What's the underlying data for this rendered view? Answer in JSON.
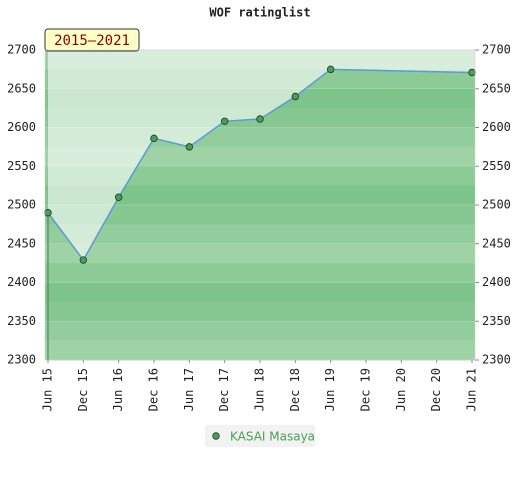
{
  "chart_data": {
    "type": "line",
    "title": "WOF ratinglist",
    "badge": "2015–2021",
    "categories": [
      "Jun 15",
      "Dec 15",
      "Jun 16",
      "Dec 16",
      "Jun 17",
      "Dec 17",
      "Jun 18",
      "Dec 18",
      "Jun 19",
      "Dec 19",
      "Jun 20",
      "Dec 20",
      "Jun 21"
    ],
    "series": [
      {
        "name": "KASAI Masaya",
        "color": "#5a9bd4",
        "marker_color": "#4a9e5a",
        "x": [
          "Jun 15",
          "Dec 15",
          "Jun 16",
          "Dec 16",
          "Jun 17",
          "Dec 17",
          "Jun 18",
          "Dec 18",
          "Jun 19",
          "Jun 21"
        ],
        "values": [
          2490,
          2429,
          2510,
          2586,
          2575,
          2608,
          2611,
          2640,
          2675,
          2671
        ]
      }
    ],
    "ylim": [
      2300,
      2700
    ],
    "yticks": [
      2300,
      2350,
      2400,
      2450,
      2500,
      2550,
      2600,
      2650,
      2700
    ],
    "y2lim": [
      2300,
      2700
    ],
    "y2ticks": [
      2300,
      2350,
      2400,
      2450,
      2500,
      2550,
      2600,
      2650,
      2700
    ],
    "grid": true
  }
}
